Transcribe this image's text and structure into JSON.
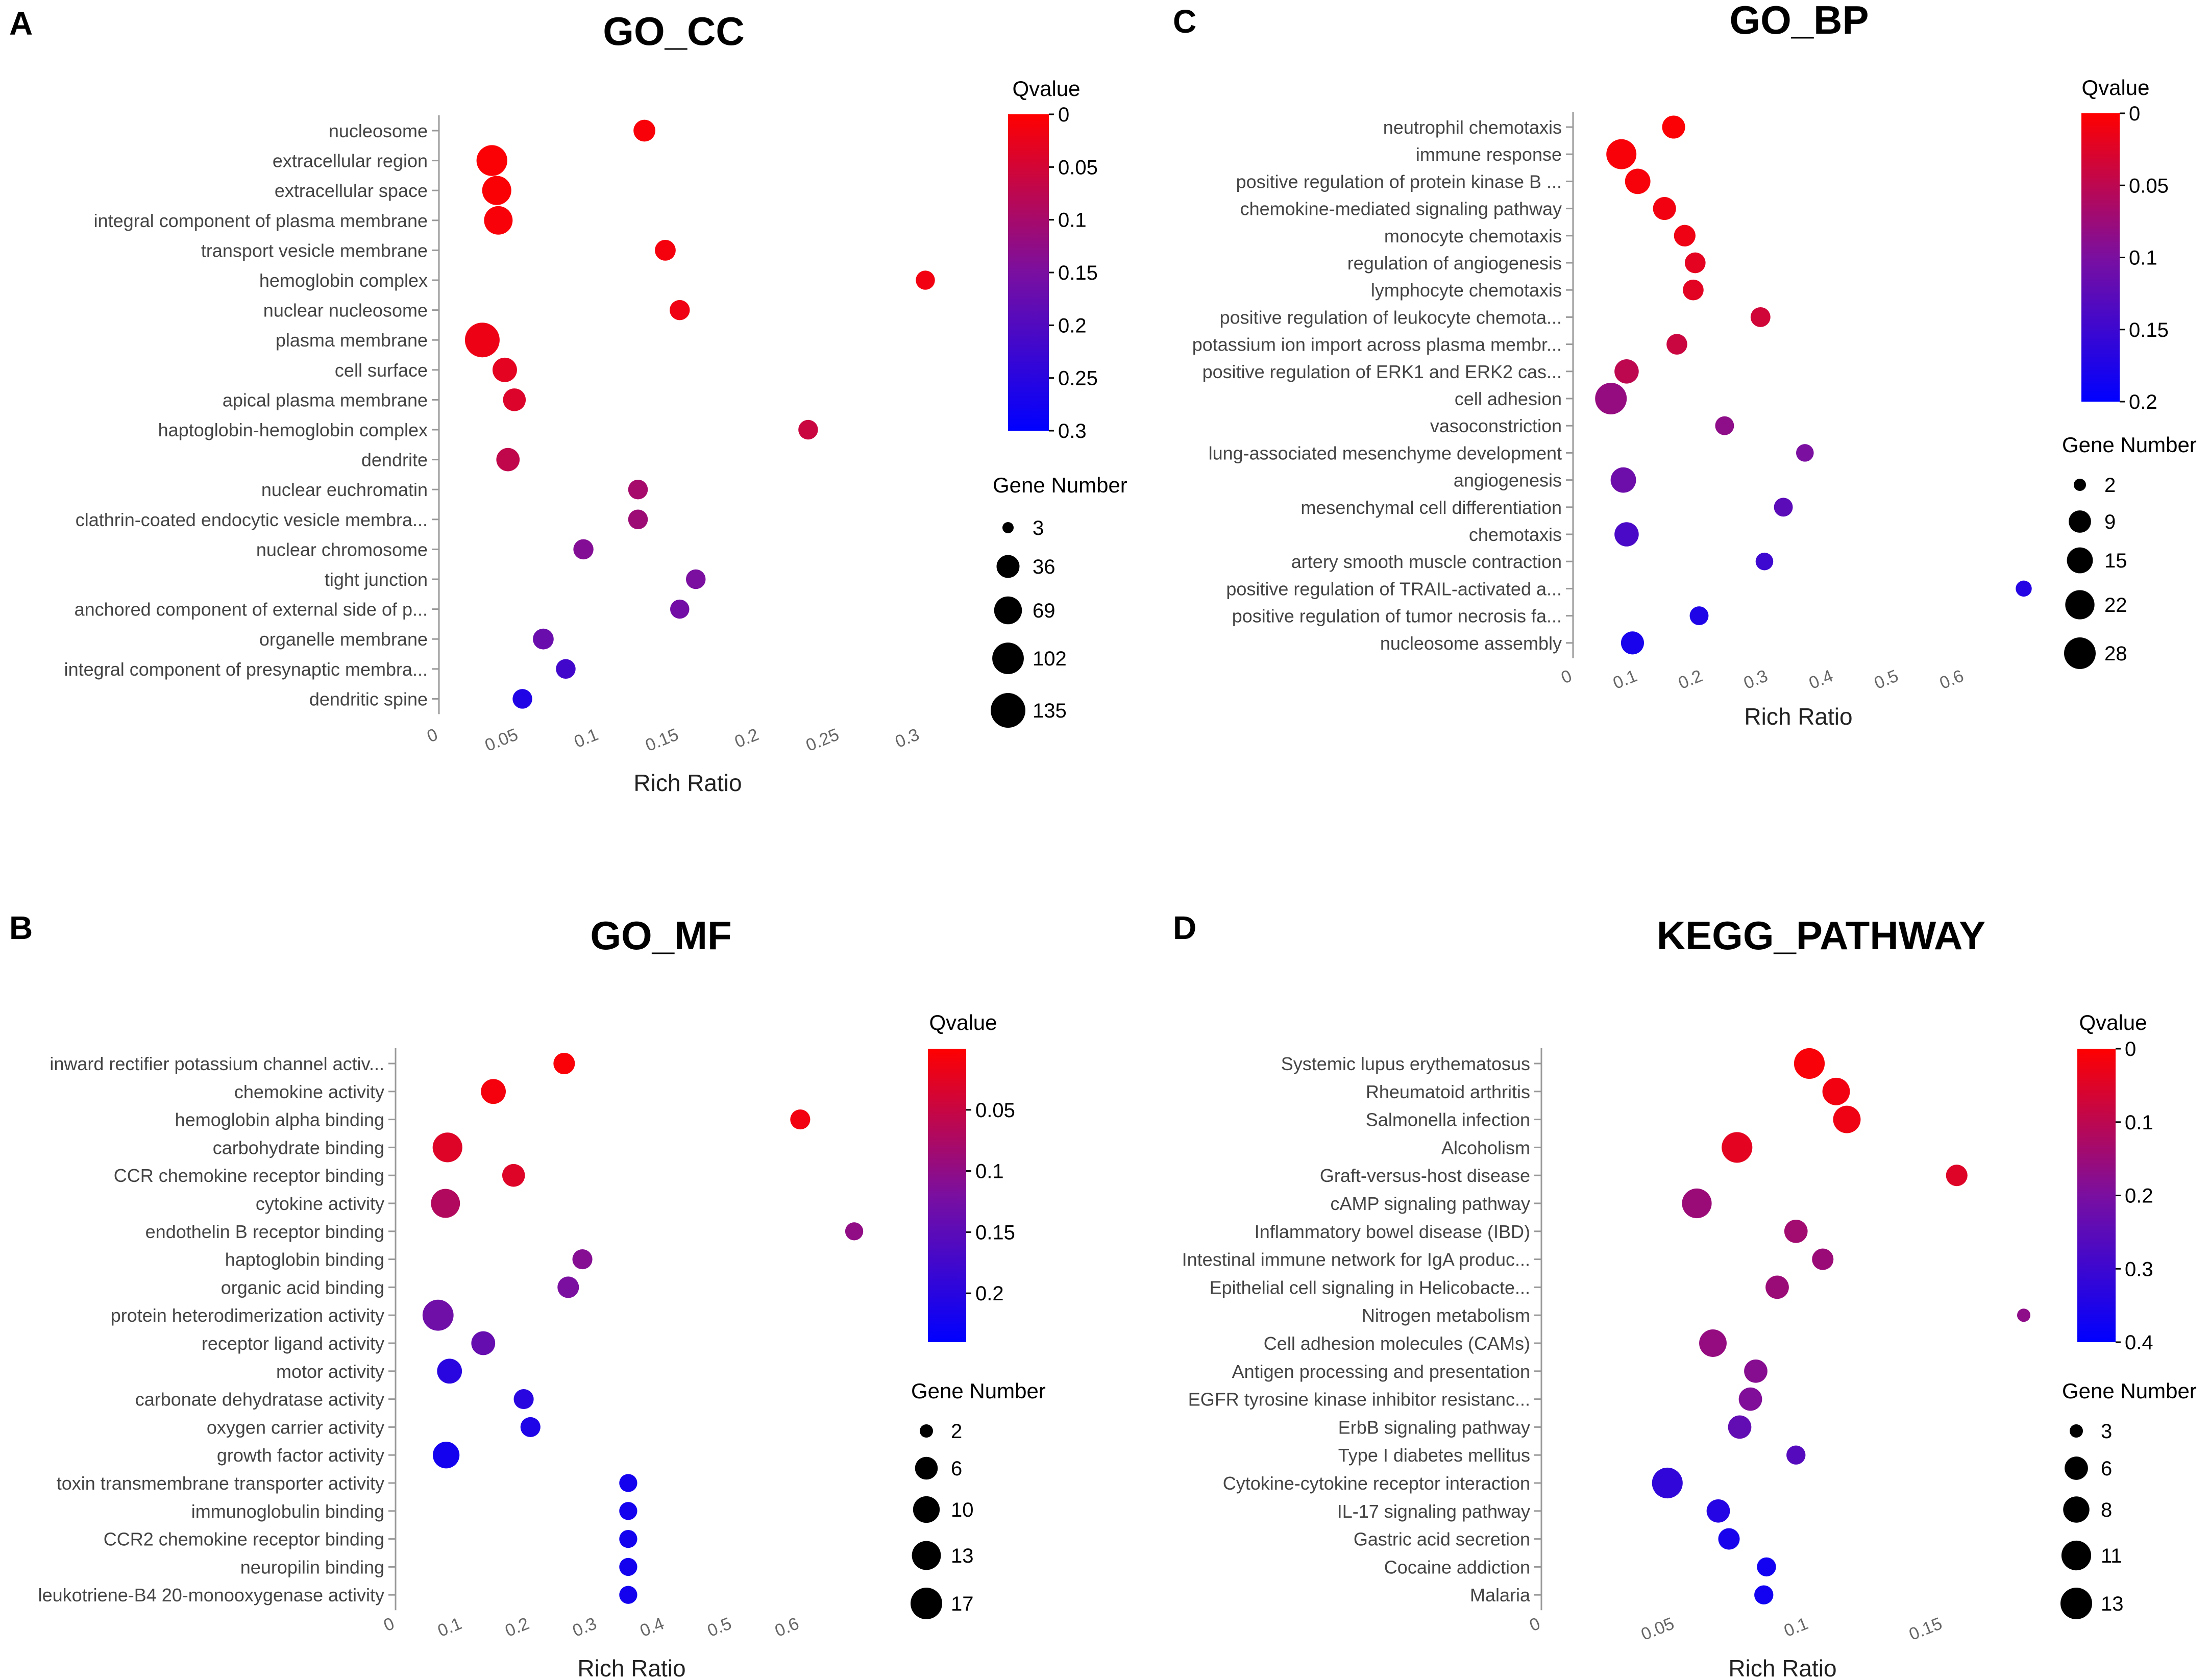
{
  "colors": {
    "q_high": "#ff0000",
    "q_mid": "#7a0fa0",
    "q_low": "#0000ff",
    "axis": "#999999",
    "dot_legend": "#000000"
  },
  "chart_data": [
    {
      "panel": "A",
      "type": "scatter",
      "title": "GO_CC",
      "xlabel": "Rich Ratio",
      "xlim": [
        0,
        0.31
      ],
      "xticks": [
        0,
        0.05,
        0.1,
        0.15,
        0.2,
        0.25,
        0.3
      ],
      "xtick_labels": [
        "0",
        "0.05",
        "0.1",
        "0.15",
        "0.2",
        "0.25",
        "0.3"
      ],
      "color_legend": {
        "title": "Qvalue",
        "min": 0,
        "max": 0.3,
        "ticks": [
          0,
          0.05,
          0.1,
          0.15,
          0.2,
          0.25,
          0.3
        ],
        "labels": [
          "0",
          "0.05",
          "0.1",
          "0.15",
          "0.2",
          "0.25",
          "0.3"
        ]
      },
      "size_legend": {
        "title": "Gene Number",
        "values": [
          3,
          36,
          69,
          102,
          135
        ],
        "labels": [
          "3",
          "36",
          "69",
          "102",
          "135"
        ]
      },
      "points": [
        {
          "term": "nucleosome",
          "x": 0.128,
          "q": 0.008,
          "genes": 30
        },
        {
          "term": "extracellular region",
          "x": 0.033,
          "q": 0.004,
          "genes": 95
        },
        {
          "term": "extracellular space",
          "x": 0.036,
          "q": 0.006,
          "genes": 80
        },
        {
          "term": "integral component of plasma membrane",
          "x": 0.037,
          "q": 0.008,
          "genes": 75
        },
        {
          "term": "transport vesicle membrane",
          "x": 0.141,
          "q": 0.012,
          "genes": 25
        },
        {
          "term": "hemoglobin complex",
          "x": 0.303,
          "q": 0.015,
          "genes": 18
        },
        {
          "term": "nuclear nucleosome",
          "x": 0.15,
          "q": 0.018,
          "genes": 22
        },
        {
          "term": "plasma membrane",
          "x": 0.027,
          "q": 0.02,
          "genes": 135
        },
        {
          "term": "cell surface",
          "x": 0.041,
          "q": 0.03,
          "genes": 45
        },
        {
          "term": "apical plasma membrane",
          "x": 0.047,
          "q": 0.04,
          "genes": 35
        },
        {
          "term": "haptoglobin-hemoglobin complex",
          "x": 0.23,
          "q": 0.06,
          "genes": 20
        },
        {
          "term": "dendrite",
          "x": 0.043,
          "q": 0.07,
          "genes": 38
        },
        {
          "term": "nuclear euchromatin",
          "x": 0.124,
          "q": 0.1,
          "genes": 20
        },
        {
          "term": "clathrin-coated endocytic vesicle membra...",
          "x": 0.124,
          "q": 0.11,
          "genes": 20
        },
        {
          "term": "nuclear chromosome",
          "x": 0.09,
          "q": 0.14,
          "genes": 22
        },
        {
          "term": "tight junction",
          "x": 0.16,
          "q": 0.15,
          "genes": 20
        },
        {
          "term": "anchored component of external side of p...",
          "x": 0.15,
          "q": 0.16,
          "genes": 18
        },
        {
          "term": "organelle membrane",
          "x": 0.065,
          "q": 0.17,
          "genes": 25
        },
        {
          "term": "integral component of presynaptic membra...",
          "x": 0.079,
          "q": 0.22,
          "genes": 20
        },
        {
          "term": "dendritic spine",
          "x": 0.052,
          "q": 0.26,
          "genes": 20
        }
      ]
    },
    {
      "panel": "C",
      "type": "scatter",
      "title": "GO_BP",
      "xlabel": "Rich Ratio",
      "xlim": [
        0,
        0.69
      ],
      "xticks": [
        0,
        0.1,
        0.2,
        0.3,
        0.4,
        0.5,
        0.6
      ],
      "xtick_labels": [
        "0",
        "0.1",
        "0.2",
        "0.3",
        "0.4",
        "0.5",
        "0.6"
      ],
      "color_legend": {
        "title": "Qvalue",
        "min": 0,
        "max": 0.2,
        "ticks": [
          0,
          0.05,
          0.1,
          0.15,
          0.2
        ],
        "labels": [
          "0",
          "0.05",
          "0.1",
          "0.15",
          "0.2"
        ]
      },
      "size_legend": {
        "title": "Gene Number",
        "values": [
          2,
          9,
          15,
          22,
          28
        ],
        "labels": [
          "2",
          "9",
          "15",
          "22",
          "28"
        ]
      },
      "points": [
        {
          "term": "neutrophil chemotaxis",
          "x": 0.154,
          "q": 0.003,
          "genes": 10
        },
        {
          "term": "immune response",
          "x": 0.074,
          "q": 0.005,
          "genes": 24
        },
        {
          "term": "positive regulation of protein kinase B ...",
          "x": 0.099,
          "q": 0.006,
          "genes": 14
        },
        {
          "term": "chemokine-mediated signaling pathway",
          "x": 0.14,
          "q": 0.01,
          "genes": 10
        },
        {
          "term": "monocyte chemotaxis",
          "x": 0.171,
          "q": 0.012,
          "genes": 8
        },
        {
          "term": "regulation of angiogenesis",
          "x": 0.187,
          "q": 0.02,
          "genes": 7
        },
        {
          "term": "lymphocyte chemotaxis",
          "x": 0.184,
          "q": 0.022,
          "genes": 7
        },
        {
          "term": "positive regulation of leukocyte chemota...",
          "x": 0.287,
          "q": 0.035,
          "genes": 6
        },
        {
          "term": "potassium ion import across plasma membr...",
          "x": 0.159,
          "q": 0.04,
          "genes": 7
        },
        {
          "term": "positive regulation of ERK1 and ERK2 cas...",
          "x": 0.082,
          "q": 0.05,
          "genes": 12
        },
        {
          "term": "cell adhesion",
          "x": 0.058,
          "q": 0.08,
          "genes": 28
        },
        {
          "term": "vasoconstriction",
          "x": 0.232,
          "q": 0.085,
          "genes": 5
        },
        {
          "term": "lung-associated mesenchyme development",
          "x": 0.355,
          "q": 0.1,
          "genes": 4
        },
        {
          "term": "angiogenesis",
          "x": 0.077,
          "q": 0.11,
          "genes": 14
        },
        {
          "term": "mesenchymal cell differentiation",
          "x": 0.322,
          "q": 0.125,
          "genes": 5
        },
        {
          "term": "chemotaxis",
          "x": 0.082,
          "q": 0.14,
          "genes": 12
        },
        {
          "term": "artery smooth muscle contraction",
          "x": 0.293,
          "q": 0.15,
          "genes": 4
        },
        {
          "term": "positive regulation of TRAIL-activated a...",
          "x": 0.69,
          "q": 0.17,
          "genes": 3
        },
        {
          "term": "positive regulation of tumor necrosis fa...",
          "x": 0.193,
          "q": 0.175,
          "genes": 5
        },
        {
          "term": "nucleosome assembly",
          "x": 0.091,
          "q": 0.18,
          "genes": 10
        }
      ]
    },
    {
      "panel": "B",
      "type": "scatter",
      "title": "GO_MF",
      "xlabel": "Rich Ratio",
      "xlim": [
        0,
        0.7
      ],
      "xticks": [
        0,
        0.1,
        0.2,
        0.3,
        0.4,
        0.5,
        0.6
      ],
      "xtick_labels": [
        "0",
        "0.1",
        "0.2",
        "0.3",
        "0.4",
        "0.5",
        "0.6"
      ],
      "color_legend": {
        "title": "Qvalue",
        "min": 0,
        "max": 0.24,
        "ticks": [
          0.05,
          0.1,
          0.15,
          0.2
        ],
        "labels": [
          "0.05",
          "0.1",
          "0.15",
          "0.2"
        ]
      },
      "size_legend": {
        "title": "Gene Number",
        "values": [
          2,
          6,
          10,
          13,
          17
        ],
        "labels": [
          "2",
          "6",
          "10",
          "13",
          "17"
        ]
      },
      "points": [
        {
          "term": "inward rectifier potassium channel activ...",
          "x": 0.25,
          "q": 0.005,
          "genes": 5
        },
        {
          "term": "chemokine activity",
          "x": 0.145,
          "q": 0.01,
          "genes": 8
        },
        {
          "term": "hemoglobin alpha binding",
          "x": 0.6,
          "q": 0.012,
          "genes": 4
        },
        {
          "term": "carbohydrate binding",
          "x": 0.077,
          "q": 0.03,
          "genes": 14
        },
        {
          "term": "CCR chemokine receptor binding",
          "x": 0.175,
          "q": 0.03,
          "genes": 6
        },
        {
          "term": "cytokine activity",
          "x": 0.074,
          "q": 0.07,
          "genes": 13
        },
        {
          "term": "endothelin B receptor binding",
          "x": 0.68,
          "q": 0.1,
          "genes": 3
        },
        {
          "term": "haptoglobin binding",
          "x": 0.277,
          "q": 0.11,
          "genes": 4
        },
        {
          "term": "organic acid binding",
          "x": 0.256,
          "q": 0.12,
          "genes": 5
        },
        {
          "term": "protein heterodimerization activity",
          "x": 0.063,
          "q": 0.13,
          "genes": 16
        },
        {
          "term": "receptor ligand activity",
          "x": 0.13,
          "q": 0.14,
          "genes": 7
        },
        {
          "term": "motor activity",
          "x": 0.08,
          "q": 0.2,
          "genes": 8
        },
        {
          "term": "carbonate dehydratase activity",
          "x": 0.19,
          "q": 0.2,
          "genes": 4
        },
        {
          "term": "oxygen carrier activity",
          "x": 0.2,
          "q": 0.21,
          "genes": 4
        },
        {
          "term": "growth factor activity",
          "x": 0.075,
          "q": 0.22,
          "genes": 10
        },
        {
          "term": "toxin transmembrane transporter activity",
          "x": 0.345,
          "q": 0.22,
          "genes": 3
        },
        {
          "term": "immunoglobulin binding",
          "x": 0.345,
          "q": 0.22,
          "genes": 3
        },
        {
          "term": "CCR2 chemokine receptor binding",
          "x": 0.345,
          "q": 0.22,
          "genes": 3
        },
        {
          "term": "neuropilin binding",
          "x": 0.345,
          "q": 0.22,
          "genes": 3
        },
        {
          "term": "leukotriene-B4 20-monooxygenase activity",
          "x": 0.345,
          "q": 0.22,
          "genes": 3
        }
      ]
    },
    {
      "panel": "D",
      "type": "scatter",
      "title": "KEGG_PATHWAY",
      "xlabel": "Rich Ratio",
      "xlim": [
        0,
        0.18
      ],
      "xticks": [
        0,
        0.05,
        0.1,
        0.15
      ],
      "xtick_labels": [
        "0",
        "0.05",
        "0.1",
        "0.15"
      ],
      "color_legend": {
        "title": "Qvalue",
        "min": 0,
        "max": 0.4,
        "ticks": [
          0,
          0.1,
          0.2,
          0.3,
          0.4
        ],
        "labels": [
          "0",
          "0.1",
          "0.2",
          "0.3",
          "0.4"
        ]
      },
      "size_legend": {
        "title": "Gene Number",
        "values": [
          3,
          6,
          8,
          11,
          13
        ],
        "labels": [
          "3",
          "6",
          "8",
          "11",
          "13"
        ]
      },
      "points": [
        {
          "term": "Systemic lupus erythematosus",
          "x": 0.1,
          "q": 0.01,
          "genes": 12
        },
        {
          "term": "Rheumatoid arthritis",
          "x": 0.11,
          "q": 0.02,
          "genes": 9
        },
        {
          "term": "Salmonella infection",
          "x": 0.114,
          "q": 0.025,
          "genes": 9
        },
        {
          "term": "Alcoholism",
          "x": 0.073,
          "q": 0.04,
          "genes": 12
        },
        {
          "term": "Graft-versus-host disease",
          "x": 0.155,
          "q": 0.05,
          "genes": 5
        },
        {
          "term": "cAMP signaling pathway",
          "x": 0.058,
          "q": 0.15,
          "genes": 11
        },
        {
          "term": "Inflammatory bowel disease (IBD)",
          "x": 0.095,
          "q": 0.14,
          "genes": 6
        },
        {
          "term": "Intestinal immune network for IgA produc...",
          "x": 0.105,
          "q": 0.15,
          "genes": 5
        },
        {
          "term": "Epithelial cell signaling in Helicobacte...",
          "x": 0.088,
          "q": 0.15,
          "genes": 6
        },
        {
          "term": "Nitrogen metabolism",
          "x": 0.18,
          "q": 0.17,
          "genes": 3
        },
        {
          "term": "Cell adhesion molecules (CAMs)",
          "x": 0.064,
          "q": 0.16,
          "genes": 9
        },
        {
          "term": "Antigen processing and presentation",
          "x": 0.08,
          "q": 0.18,
          "genes": 6
        },
        {
          "term": "EGFR tyrosine kinase inhibitor resistanc...",
          "x": 0.078,
          "q": 0.19,
          "genes": 6
        },
        {
          "term": "ErbB signaling pathway",
          "x": 0.074,
          "q": 0.24,
          "genes": 6
        },
        {
          "term": "Type I diabetes mellitus",
          "x": 0.095,
          "q": 0.26,
          "genes": 4
        },
        {
          "term": "Cytokine-cytokine receptor interaction",
          "x": 0.047,
          "q": 0.32,
          "genes": 12
        },
        {
          "term": "IL-17 signaling pathway",
          "x": 0.066,
          "q": 0.34,
          "genes": 6
        },
        {
          "term": "Gastric acid secretion",
          "x": 0.07,
          "q": 0.36,
          "genes": 5
        },
        {
          "term": "Cocaine addiction",
          "x": 0.084,
          "q": 0.37,
          "genes": 4
        },
        {
          "term": "Malaria",
          "x": 0.083,
          "q": 0.37,
          "genes": 4
        }
      ]
    }
  ]
}
